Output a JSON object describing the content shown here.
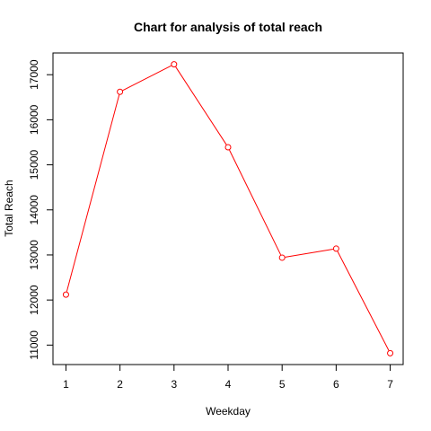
{
  "chart_data": {
    "type": "line",
    "title": "Chart for analysis of total reach",
    "xlabel": "Weekday",
    "ylabel": "Total Reach",
    "x": [
      1,
      2,
      3,
      4,
      5,
      6,
      7
    ],
    "series": [
      {
        "values": [
          12120,
          16620,
          17230,
          15390,
          12940,
          13140,
          10820
        ],
        "color": "#ff0000",
        "marker": "open-circle"
      }
    ],
    "xticks": [
      1,
      2,
      3,
      4,
      5,
      6,
      7
    ],
    "yticks": [
      11000,
      12000,
      13000,
      14000,
      15000,
      16000,
      17000
    ],
    "xlim": [
      0.76,
      7.24
    ],
    "ylim": [
      10568,
      17482
    ],
    "grid": false,
    "legend": "none"
  }
}
